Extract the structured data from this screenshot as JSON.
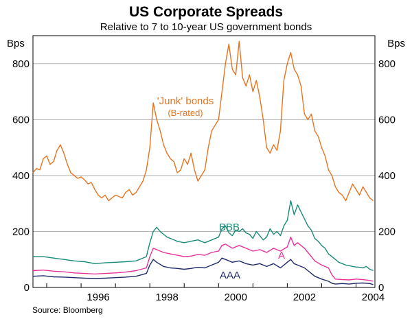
{
  "chart_data": {
    "type": "line",
    "title": "US Corporate Spreads",
    "subtitle": "Relative to 7 to 10-year US government bonds",
    "ylabel_left": "Bps",
    "ylabel_right": "Bps",
    "ylim": [
      0,
      900
    ],
    "xlim": [
      1994.6,
      2004.55
    ],
    "yticks": [
      0,
      200,
      400,
      600,
      800
    ],
    "ytick_labels": [
      "0",
      "200",
      "400",
      "600",
      "800"
    ],
    "xticks": [
      1996,
      1998,
      2000,
      2002,
      2004
    ],
    "xtick_labels": [
      "1996",
      "1998",
      "2000",
      "2002",
      "2004"
    ],
    "source": "Source: Bloomberg",
    "grid": true,
    "series": [
      {
        "name": "'Junk' bonds",
        "sublabel": "(B-rated)",
        "color": "#e8731f",
        "x": [
          1994.6,
          1994.7,
          1994.8,
          1994.9,
          1995.0,
          1995.1,
          1995.2,
          1995.3,
          1995.4,
          1995.5,
          1995.6,
          1995.7,
          1995.8,
          1995.9,
          1996.0,
          1996.1,
          1996.2,
          1996.3,
          1996.4,
          1996.5,
          1996.6,
          1996.7,
          1996.8,
          1996.9,
          1997.0,
          1997.1,
          1997.2,
          1997.3,
          1997.4,
          1997.5,
          1997.6,
          1997.7,
          1997.8,
          1997.9,
          1998.0,
          1998.1,
          1998.2,
          1998.3,
          1998.4,
          1998.5,
          1998.6,
          1998.7,
          1998.8,
          1998.9,
          1999.0,
          1999.1,
          1999.2,
          1999.3,
          1999.4,
          1999.5,
          1999.6,
          1999.7,
          1999.8,
          1999.9,
          2000.0,
          2000.1,
          2000.2,
          2000.3,
          2000.4,
          2000.5,
          2000.6,
          2000.7,
          2000.8,
          2000.9,
          2001.0,
          2001.1,
          2001.2,
          2001.3,
          2001.4,
          2001.5,
          2001.6,
          2001.7,
          2001.8,
          2001.9,
          2002.0,
          2002.1,
          2002.2,
          2002.3,
          2002.4,
          2002.5,
          2002.6,
          2002.7,
          2002.8,
          2002.9,
          2003.0,
          2003.1,
          2003.2,
          2003.3,
          2003.4,
          2003.5,
          2003.6,
          2003.7,
          2003.8,
          2003.9,
          2004.0,
          2004.1,
          2004.2,
          2004.3,
          2004.4,
          2004.5
        ],
        "values": [
          410,
          425,
          420,
          460,
          470,
          440,
          450,
          490,
          510,
          480,
          440,
          410,
          400,
          390,
          395,
          385,
          370,
          375,
          350,
          330,
          320,
          330,
          310,
          320,
          330,
          325,
          320,
          340,
          350,
          330,
          340,
          360,
          380,
          420,
          500,
          660,
          600,
          560,
          510,
          480,
          460,
          450,
          410,
          420,
          460,
          440,
          480,
          420,
          380,
          400,
          420,
          500,
          560,
          580,
          600,
          700,
          800,
          870,
          780,
          760,
          880,
          750,
          720,
          760,
          700,
          740,
          680,
          600,
          500,
          480,
          510,
          490,
          560,
          740,
          800,
          840,
          780,
          760,
          720,
          620,
          600,
          620,
          560,
          540,
          500,
          470,
          420,
          400,
          360,
          340,
          330,
          310,
          340,
          370,
          350,
          330,
          360,
          340,
          320,
          310
        ]
      },
      {
        "name": "BBB",
        "color": "#1a8a78",
        "x": [
          1994.6,
          1994.9,
          1995.2,
          1995.5,
          1995.8,
          1996.1,
          1996.4,
          1996.7,
          1997.0,
          1997.3,
          1997.6,
          1997.9,
          1998.0,
          1998.1,
          1998.2,
          1998.3,
          1998.4,
          1998.5,
          1998.6,
          1998.8,
          1999.0,
          1999.2,
          1999.4,
          1999.6,
          1999.8,
          2000.0,
          2000.1,
          2000.2,
          2000.3,
          2000.4,
          2000.5,
          2000.6,
          2000.7,
          2000.8,
          2000.9,
          2001.0,
          2001.1,
          2001.2,
          2001.3,
          2001.4,
          2001.5,
          2001.6,
          2001.7,
          2001.8,
          2001.9,
          2002.0,
          2002.1,
          2002.2,
          2002.3,
          2002.4,
          2002.5,
          2002.6,
          2002.7,
          2002.8,
          2002.9,
          2003.0,
          2003.1,
          2003.2,
          2003.3,
          2003.4,
          2003.5,
          2003.6,
          2003.7,
          2003.8,
          2003.9,
          2004.0,
          2004.1,
          2004.2,
          2004.3,
          2004.4,
          2004.5
        ],
        "values": [
          110,
          110,
          105,
          100,
          95,
          92,
          85,
          88,
          90,
          92,
          95,
          110,
          160,
          200,
          215,
          200,
          190,
          180,
          175,
          165,
          160,
          165,
          170,
          160,
          170,
          180,
          210,
          220,
          195,
          185,
          205,
          200,
          210,
          195,
          190,
          175,
          200,
          185,
          170,
          180,
          210,
          190,
          200,
          185,
          220,
          240,
          310,
          260,
          295,
          270,
          245,
          220,
          205,
          175,
          165,
          150,
          140,
          120,
          110,
          100,
          90,
          85,
          80,
          78,
          75,
          73,
          72,
          70,
          75,
          65,
          60
        ]
      },
      {
        "name": "A",
        "color": "#e8309a",
        "x": [
          1994.6,
          1994.9,
          1995.2,
          1995.5,
          1995.8,
          1996.1,
          1996.4,
          1996.7,
          1997.0,
          1997.3,
          1997.6,
          1997.9,
          1998.0,
          1998.1,
          1998.2,
          1998.4,
          1998.6,
          1998.8,
          1999.0,
          1999.2,
          1999.4,
          1999.6,
          1999.8,
          2000.0,
          2000.1,
          2000.2,
          2000.4,
          2000.6,
          2000.8,
          2001.0,
          2001.2,
          2001.4,
          2001.6,
          2001.8,
          2002.0,
          2002.1,
          2002.2,
          2002.3,
          2002.4,
          2002.5,
          2002.6,
          2002.7,
          2002.8,
          2003.0,
          2003.2,
          2003.3,
          2003.4,
          2003.6,
          2003.8,
          2004.0,
          2004.2,
          2004.4,
          2004.5
        ],
        "values": [
          60,
          62,
          58,
          56,
          52,
          50,
          48,
          50,
          52,
          55,
          60,
          70,
          110,
          140,
          135,
          125,
          120,
          115,
          110,
          112,
          118,
          115,
          125,
          130,
          150,
          155,
          140,
          150,
          140,
          130,
          135,
          125,
          140,
          130,
          145,
          180,
          150,
          160,
          150,
          140,
          125,
          110,
          95,
          80,
          70,
          45,
          30,
          28,
          27,
          30,
          28,
          25,
          22
        ]
      },
      {
        "name": "AAA",
        "color": "#1f2a6b",
        "x": [
          1994.6,
          1994.9,
          1995.2,
          1995.5,
          1995.8,
          1996.1,
          1996.4,
          1996.7,
          1997.0,
          1997.3,
          1997.6,
          1997.9,
          1998.0,
          1998.1,
          1998.2,
          1998.4,
          1998.6,
          1998.8,
          1999.0,
          1999.2,
          1999.4,
          1999.6,
          1999.8,
          2000.0,
          2000.1,
          2000.2,
          2000.4,
          2000.6,
          2000.8,
          2001.0,
          2001.2,
          2001.4,
          2001.6,
          2001.8,
          2002.0,
          2002.1,
          2002.2,
          2002.3,
          2002.4,
          2002.5,
          2002.6,
          2002.7,
          2002.8,
          2003.0,
          2003.2,
          2003.3,
          2003.4,
          2003.6,
          2003.8,
          2004.0,
          2004.2,
          2004.4,
          2004.5
        ],
        "values": [
          40,
          42,
          38,
          37,
          35,
          33,
          32,
          33,
          35,
          37,
          40,
          50,
          80,
          100,
          90,
          75,
          70,
          68,
          65,
          68,
          72,
          70,
          80,
          90,
          105,
          100,
          90,
          95,
          85,
          80,
          85,
          75,
          85,
          70,
          90,
          100,
          85,
          80,
          75,
          70,
          60,
          50,
          40,
          30,
          22,
          15,
          12,
          14,
          12,
          15,
          16,
          14,
          10
        ]
      }
    ],
    "annotations": [
      {
        "text": "'Junk' bonds",
        "series": "'Junk' bonds"
      },
      {
        "text": "(B-rated)",
        "series": "'Junk' bonds"
      },
      {
        "text": "BBB",
        "series": "BBB"
      },
      {
        "text": "A",
        "series": "A"
      },
      {
        "text": "AAA",
        "series": "AAA"
      }
    ]
  }
}
